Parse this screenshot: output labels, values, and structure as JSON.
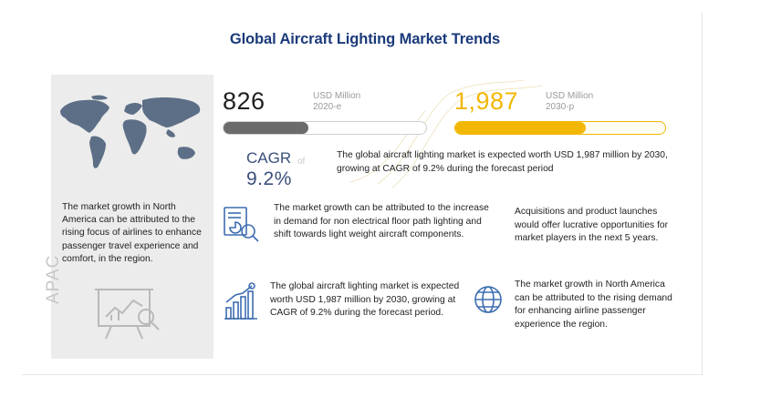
{
  "page": {
    "title": "Global Aircraft Lighting Market Trends"
  },
  "left_panel": {
    "description": "The market growth in North America can be attributed to the rising focus of airlines to enhance passenger travel experience and comfort, in the region.",
    "region": "APAC",
    "map_icon": "world-map-icon",
    "chart_icon": "analytics-board-icon"
  },
  "metrics": [
    {
      "value": "826",
      "unit": "USD Million",
      "year": "2020-e",
      "fill_fraction": 0.42,
      "color": "#6b6b6b"
    },
    {
      "value": "1,987",
      "unit": "USD Million",
      "year": "2030-p",
      "fill_fraction": 0.62,
      "color": "#f2b705"
    }
  ],
  "cagr": {
    "label": "CAGR",
    "of": "of",
    "value": "9.2%",
    "summary": "The global aircraft lighting market is expected worth USD 1,987 million by 2030, growing at CAGR of 9.2% during the forecast period"
  },
  "insights": [
    {
      "icon": "analysis-report-icon",
      "text": "The market growth can be attributed to the increase in demand for non electrical floor path lighting and shift towards light weight aircraft components."
    },
    {
      "icon": "",
      "text": "Acquisitions and product launches would offer lucrative opportunities for market players in the next 5 years."
    },
    {
      "icon": "growth-chart-icon",
      "text": "The global aircraft lighting market is expected worth USD 1,987 million by 2030, growing at CAGR of 9.2% during the forecast period."
    },
    {
      "icon": "globe-icon",
      "text": "The market growth in North America can be attributed to the rising demand for enhancing airline passenger experience the region."
    }
  ],
  "colors": {
    "title": "#1b3a7a",
    "accent": "#f2b705",
    "dark_bar": "#6b6b6b",
    "cagr": "#3a4f7a",
    "left_bg": "#ececec"
  },
  "chart_data": {
    "type": "bar",
    "categories": [
      "2020-e",
      "2030-p"
    ],
    "values": [
      826,
      1987
    ],
    "unit": "USD Million",
    "cagr": "9.2%"
  }
}
